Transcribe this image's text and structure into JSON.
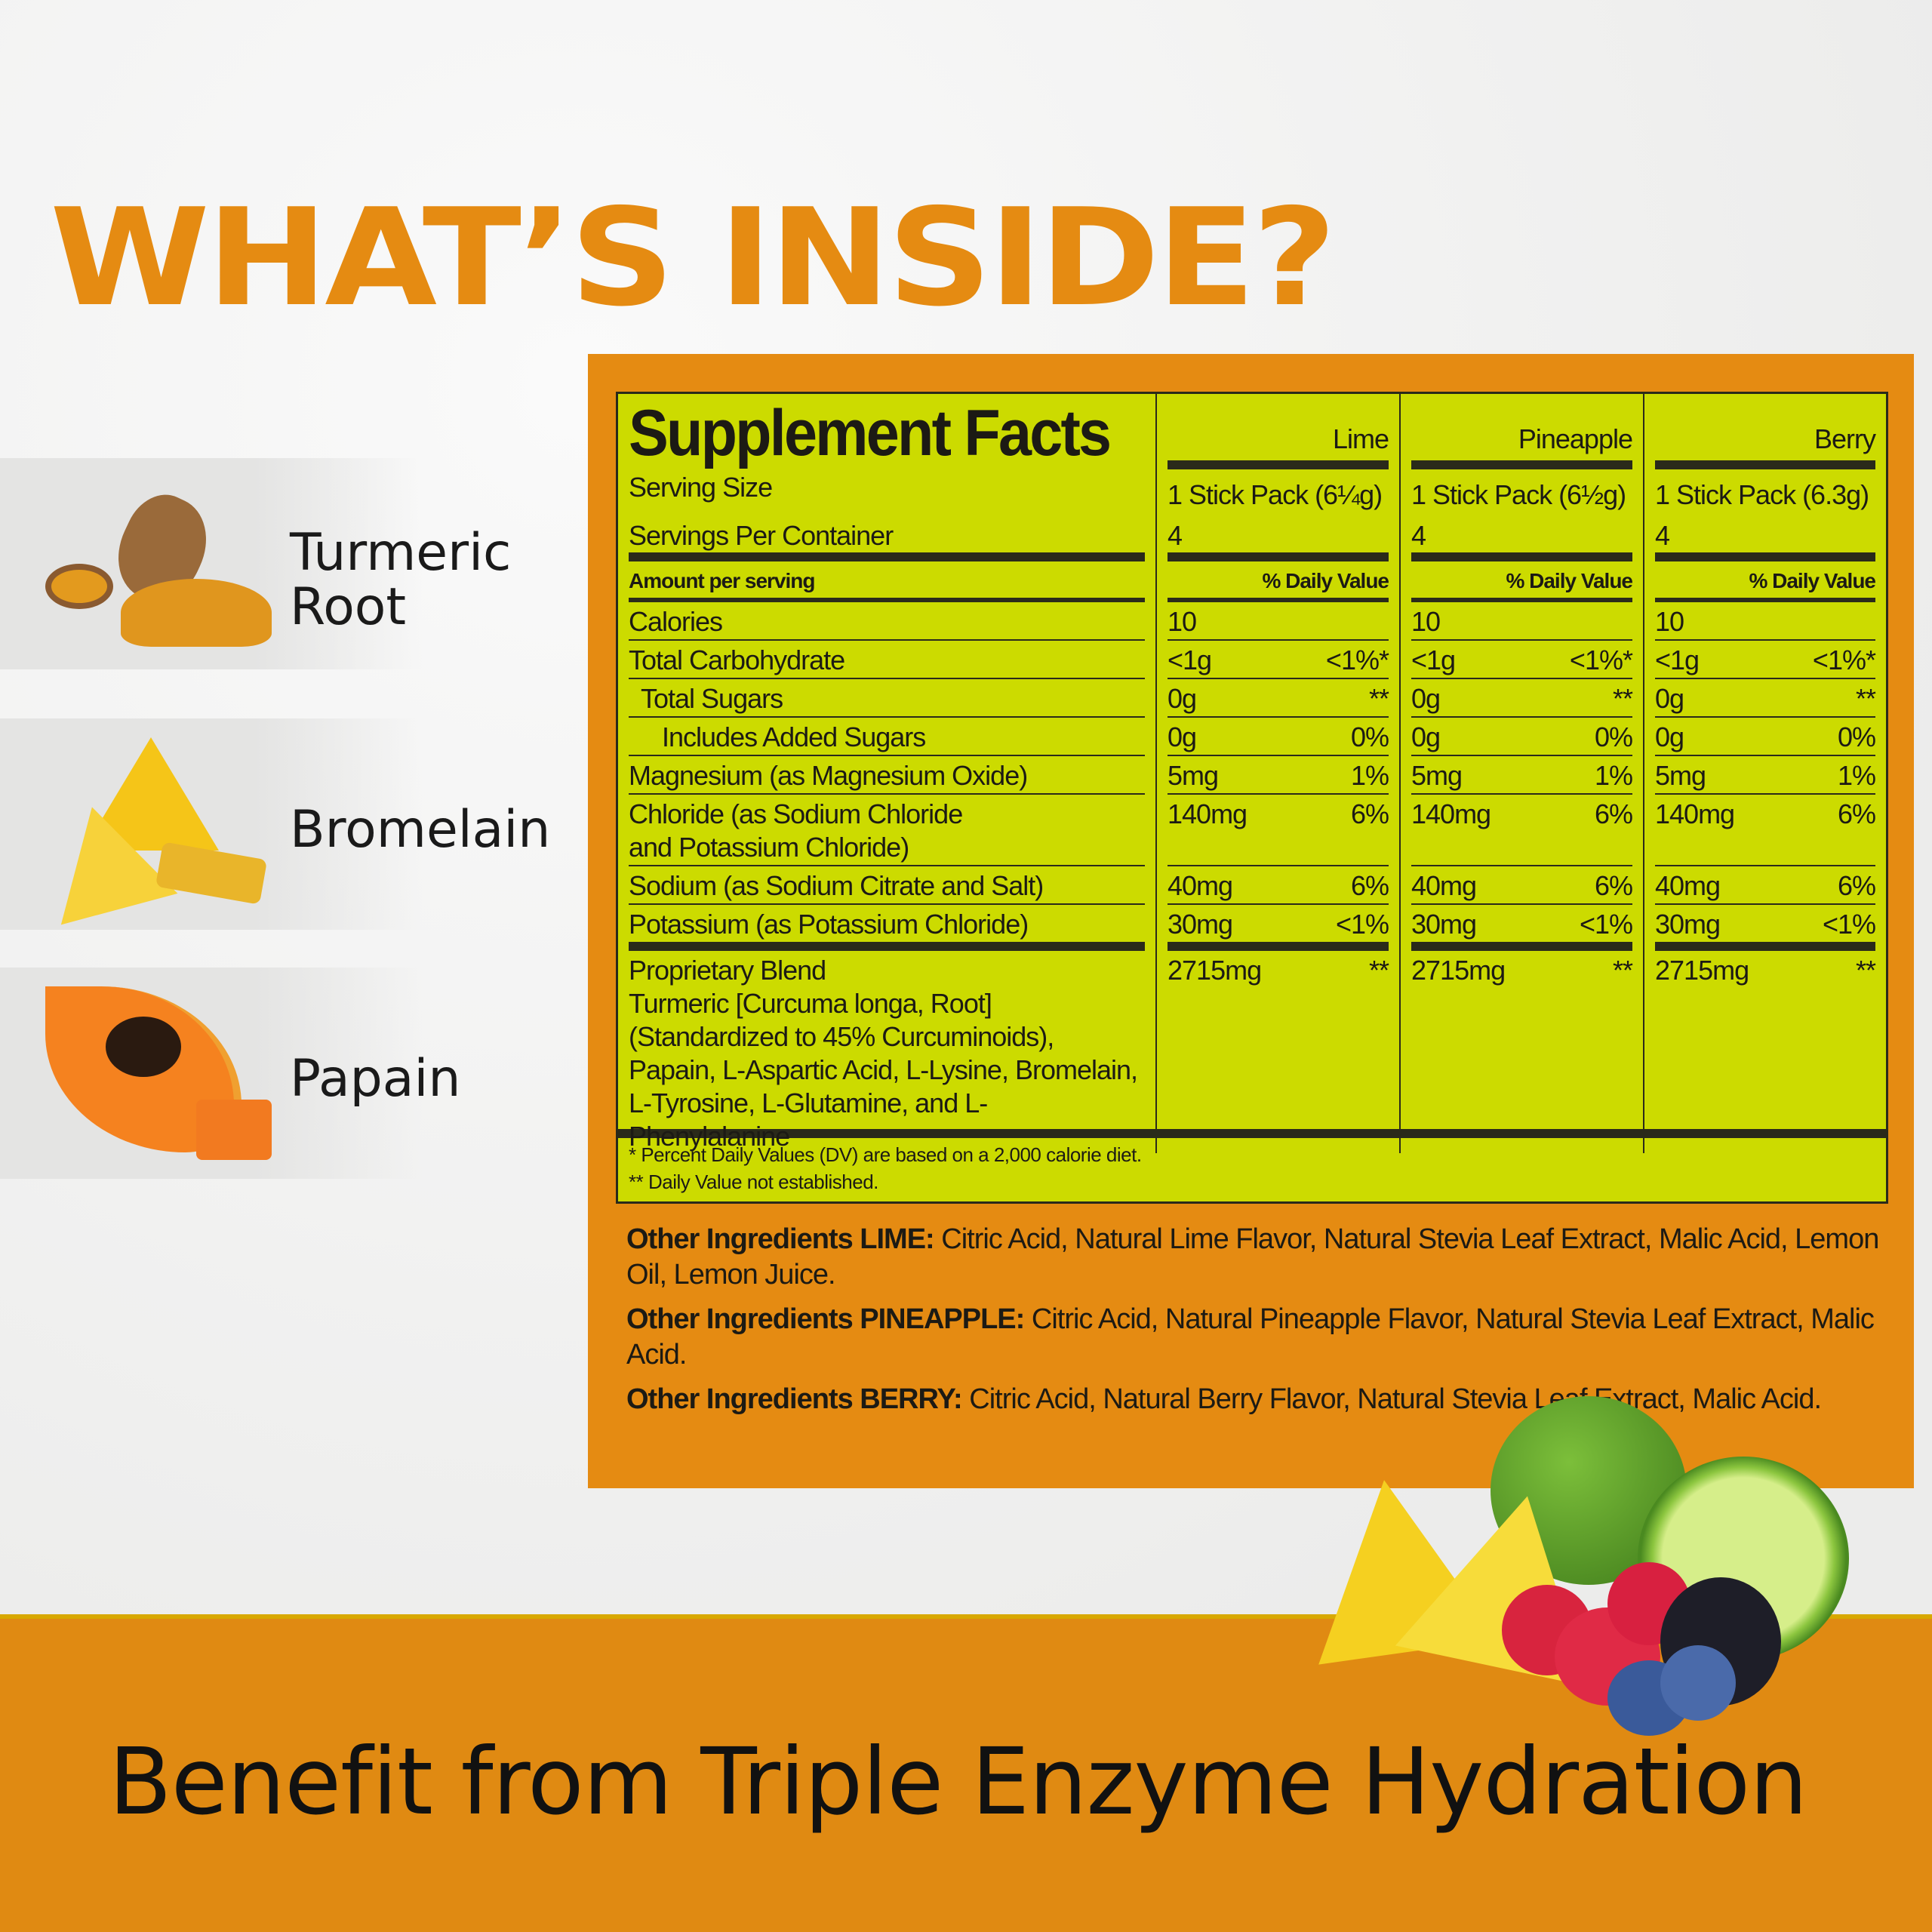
{
  "headline": "WHAT’S INSIDE?",
  "ingredients": [
    {
      "label_line1": "Turmeric",
      "label_line2": "Root",
      "icon": "turmeric-icon"
    },
    {
      "label_line1": "Bromelain",
      "label_line2": "",
      "icon": "pineapple-icon"
    },
    {
      "label_line1": "Papain",
      "label_line2": "",
      "icon": "papaya-icon"
    }
  ],
  "facts": {
    "title": "Supplement Facts",
    "flavors": [
      "Lime",
      "Pineapple",
      "Berry"
    ],
    "serving_size_label": "Serving Size",
    "servings_label": "Servings Per Container",
    "serving_sizes": [
      "1 Stick Pack (6¼g)",
      "1 Stick Pack (6½g)",
      "1 Stick Pack (6.3g)"
    ],
    "servings": [
      "4",
      "4",
      "4"
    ],
    "amount_label": "Amount per serving",
    "dv_label": "% Daily Value",
    "rows": [
      {
        "name": "Calories",
        "indent": 0,
        "amount": "10",
        "dv": ""
      },
      {
        "name": "Total Carbohydrate",
        "indent": 0,
        "amount": "<1g",
        "dv": "<1%*"
      },
      {
        "name": "Total Sugars",
        "indent": 1,
        "amount": "0g",
        "dv": "**"
      },
      {
        "name": "Includes Added Sugars",
        "indent": 2,
        "amount": "0g",
        "dv": "0%"
      },
      {
        "name": "Magnesium (as Magnesium Oxide)",
        "indent": 0,
        "amount": "5mg",
        "dv": "1%"
      },
      {
        "name": "Chloride (as Sodium Chloride\nand Potassium Chloride)",
        "indent": 0,
        "amount": "140mg",
        "dv": "6%",
        "tall": true
      },
      {
        "name": "Sodium (as Sodium Citrate and Salt)",
        "indent": 0,
        "amount": "40mg",
        "dv": "6%"
      },
      {
        "name": "Potassium (as Potassium Chloride)",
        "indent": 0,
        "amount": "30mg",
        "dv": "<1%",
        "thick": true
      }
    ],
    "blend": {
      "name": "Proprietary Blend",
      "detail": "Turmeric [Curcuma longa, Root]\n(Standardized to 45% Curcuminoids),\nPapain, L-Aspartic Acid, L-Lysine, Bromelain,\nL-Tyrosine, L-Glutamine, and L-Phenylalanine",
      "amount": "2715mg",
      "dv": "**"
    },
    "footnote1": "* Percent Daily Values (DV) are based on a 2,000 calorie diet.",
    "footnote2": "** Daily Value not established."
  },
  "other_ingredients": [
    {
      "label": "Other Ingredients LIME:",
      "text": " Citric Acid, Natural Lime Flavor, Natural Stevia Leaf Extract, Malic Acid, Lemon Oil, Lemon Juice."
    },
    {
      "label": "Other Ingredients PINEAPPLE:",
      "text": " Citric Acid, Natural Pineapple Flavor, Natural Stevia Leaf Extract, Malic Acid."
    },
    {
      "label": "Other Ingredients BERRY:",
      "text": " Citric Acid, Natural Berry Flavor, Natural Stevia Leaf Extract, Malic Acid."
    }
  ],
  "tagline": "Benefit from Triple Enzyme Hydration",
  "colors": {
    "orange": "#e58b12",
    "label_green": "#ccdb00",
    "ink": "#1c1a14"
  }
}
